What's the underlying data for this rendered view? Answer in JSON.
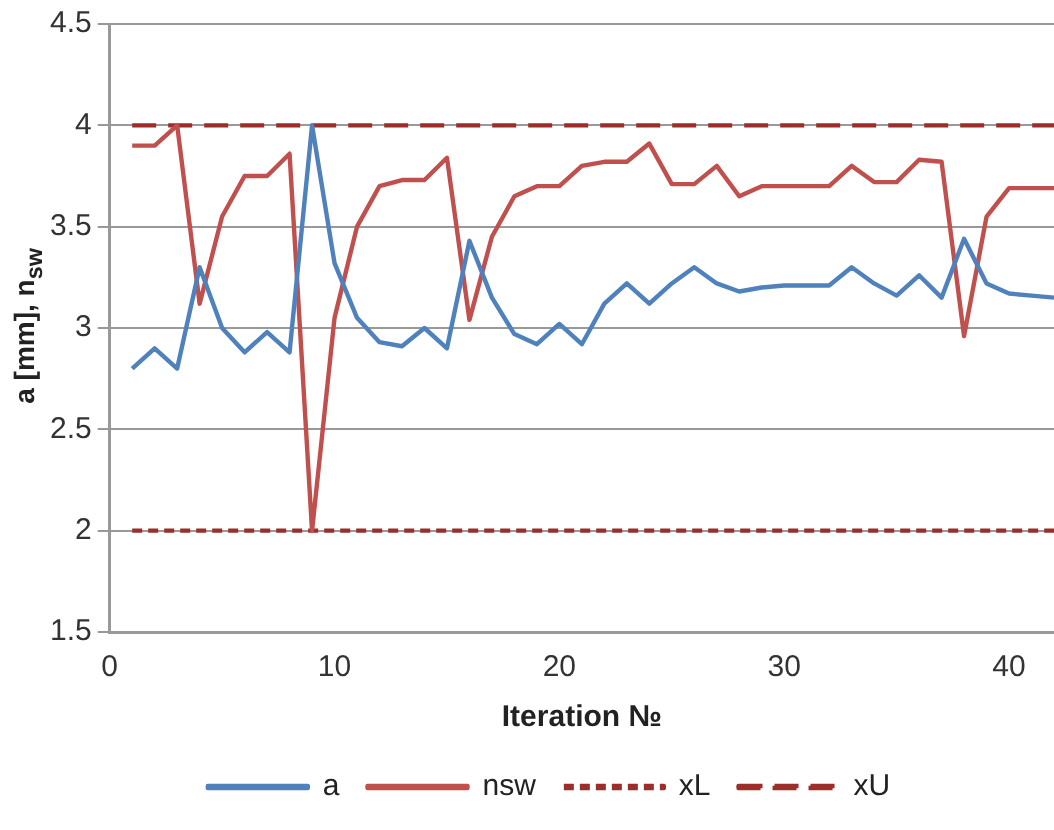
{
  "chart_data": {
    "type": "line",
    "xlabel": "Iteration №",
    "ylabel": "a [mm], n$_{sw}$",
    "xlim": [
      0,
      42
    ],
    "xticks": [
      0,
      10,
      20,
      30,
      40
    ],
    "ylim": [
      1.5,
      4.5
    ],
    "yticks": [
      1.5,
      2,
      2.5,
      3,
      3.5,
      4,
      4.5
    ],
    "grid": "y",
    "legend": "bottom",
    "marker": "none",
    "x": [
      1,
      2,
      3,
      4,
      5,
      6,
      7,
      8,
      9,
      10,
      11,
      12,
      13,
      14,
      15,
      16,
      17,
      18,
      19,
      20,
      21,
      22,
      23,
      24,
      25,
      26,
      27,
      28,
      29,
      30,
      31,
      32,
      33,
      34,
      35,
      36,
      37,
      38,
      39,
      40,
      41,
      42
    ],
    "series": [
      {
        "name": "a",
        "color": "#4f81bd",
        "line_style": "solid",
        "values": [
          2.8,
          2.9,
          2.8,
          3.3,
          3.0,
          2.88,
          2.98,
          2.88,
          4.0,
          3.32,
          3.05,
          2.93,
          2.91,
          3.0,
          2.9,
          3.43,
          3.15,
          2.97,
          2.92,
          3.02,
          2.92,
          3.12,
          3.22,
          3.12,
          3.22,
          3.3,
          3.22,
          3.18,
          3.2,
          3.21,
          3.21,
          3.21,
          3.3,
          3.22,
          3.16,
          3.26,
          3.15,
          3.44,
          3.22,
          3.17,
          3.16,
          3.15
        ]
      },
      {
        "name": "nsw",
        "color": "#c0504d",
        "line_style": "solid",
        "values": [
          3.9,
          3.9,
          4.0,
          3.12,
          3.55,
          3.75,
          3.75,
          3.86,
          2.0,
          3.05,
          3.5,
          3.7,
          3.73,
          3.73,
          3.84,
          3.04,
          3.45,
          3.65,
          3.7,
          3.7,
          3.8,
          3.82,
          3.82,
          3.91,
          3.71,
          3.71,
          3.8,
          3.65,
          3.7,
          3.7,
          3.7,
          3.7,
          3.8,
          3.72,
          3.72,
          3.83,
          3.82,
          2.96,
          3.55,
          3.69,
          3.69,
          3.69
        ]
      },
      {
        "name": "xL",
        "color": "#9b2d2a",
        "line_style": "dotted",
        "values": [
          2,
          2,
          2,
          2,
          2,
          2,
          2,
          2,
          2,
          2,
          2,
          2,
          2,
          2,
          2,
          2,
          2,
          2,
          2,
          2,
          2,
          2,
          2,
          2,
          2,
          2,
          2,
          2,
          2,
          2,
          2,
          2,
          2,
          2,
          2,
          2,
          2,
          2,
          2,
          2,
          2,
          2
        ]
      },
      {
        "name": "xU",
        "color": "#9b2d2a",
        "line_style": "dashed",
        "values": [
          4,
          4,
          4,
          4,
          4,
          4,
          4,
          4,
          4,
          4,
          4,
          4,
          4,
          4,
          4,
          4,
          4,
          4,
          4,
          4,
          4,
          4,
          4,
          4,
          4,
          4,
          4,
          4,
          4,
          4,
          4,
          4,
          4,
          4,
          4,
          4,
          4,
          4,
          4,
          4,
          4,
          4
        ]
      }
    ]
  }
}
